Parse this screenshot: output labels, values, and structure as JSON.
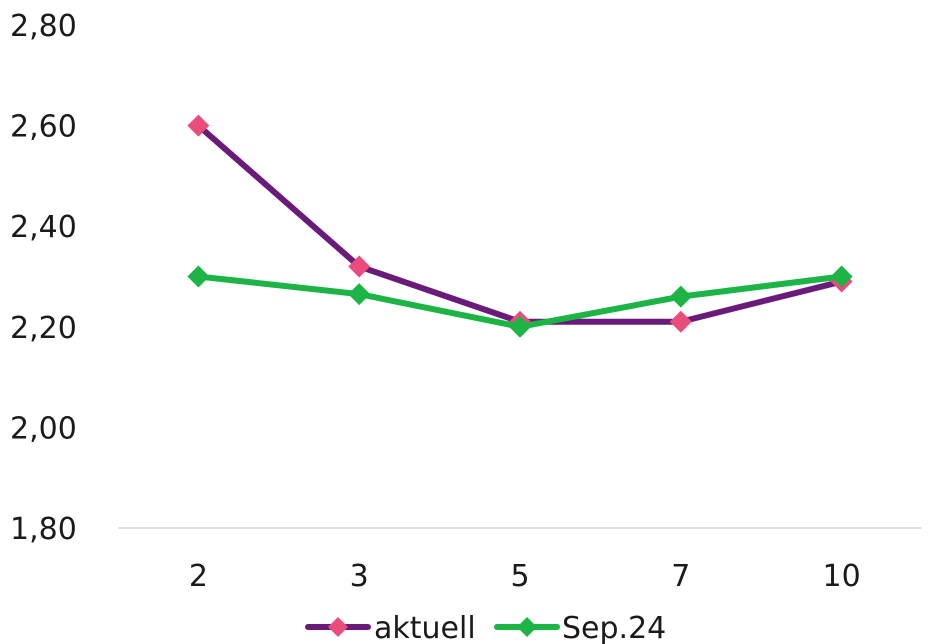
{
  "chart_data": {
    "type": "line",
    "categories": [
      "2",
      "3",
      "5",
      "7",
      "10"
    ],
    "series": [
      {
        "name": "aktuell",
        "values": [
          2.6,
          2.32,
          2.21,
          2.21,
          2.29
        ],
        "line_color": "#6a1b7a",
        "marker_color": "#ea4c7c",
        "marker": "diamond"
      },
      {
        "name": "Sep.24",
        "values": [
          2.3,
          2.265,
          2.2,
          2.26,
          2.3
        ],
        "line_color": "#1db446",
        "marker_color": "#1db446",
        "marker": "diamond"
      }
    ],
    "y_ticks": [
      "1,80",
      "2,00",
      "2,20",
      "2,40",
      "2,60",
      "2,80"
    ],
    "ylim": [
      1.8,
      2.8
    ],
    "grid": false,
    "legend_position": "bottom",
    "baseline_color": "#d9d9d9"
  }
}
